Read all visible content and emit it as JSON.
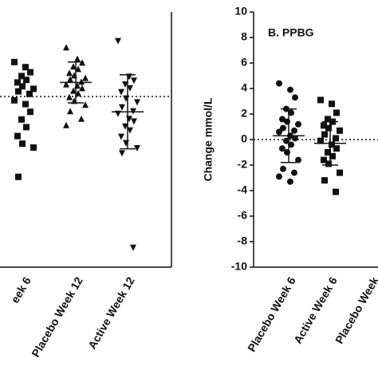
{
  "chart_data": [
    {
      "type": "scatter",
      "color": "#111111",
      "ylim": [
        -13.375,
        6.625
      ],
      "reference_line": 0,
      "groups": [
        {
          "category": "eek 6",
          "marker": "square",
          "values": [
            2.7,
            2.3,
            1.9,
            1.6,
            1.3,
            1.1,
            0.8,
            0.6,
            0.4,
            0.2,
            -0.3,
            -0.6,
            -1.2,
            -1.8,
            -2.4,
            -3.1,
            -3.7,
            -4.0,
            -6.3
          ]
        },
        {
          "category": "Placebo Week 12",
          "marker": "triangle-up",
          "values": [
            3.8,
            2.9,
            2.6,
            2.3,
            2.1,
            1.8,
            1.6,
            1.4,
            1.3,
            1.1,
            0.9,
            0.8,
            0.6,
            0.4,
            0.2,
            -0.1,
            -0.4,
            -0.7,
            -1.2,
            -1.8,
            -2.3
          ],
          "mean": 1.1,
          "sd": 1.6
        },
        {
          "category": "Active Week 12",
          "marker": "triangle-down",
          "values": [
            4.4,
            1.6,
            1.3,
            1.0,
            0.7,
            0.4,
            -0.1,
            -0.4,
            -0.8,
            -1.1,
            -1.3,
            -1.7,
            -1.9,
            -2.3,
            -2.6,
            -3.1,
            -3.6,
            -4.0,
            -4.4,
            -11.8
          ],
          "mean": -1.2,
          "sd": 2.9
        }
      ]
    },
    {
      "type": "scatter",
      "color": "#111111",
      "title": "B. PPBG",
      "ylabel": "Change mmol/L",
      "ylim": [
        -10,
        10
      ],
      "yticks": [
        -10,
        -8,
        -6,
        -4,
        -2,
        0,
        2,
        4,
        6,
        8,
        10
      ],
      "reference_line": 0,
      "groups": [
        {
          "category": "Placebo Week 6",
          "marker": "circle",
          "values": [
            4.4,
            3.9,
            3.3,
            2.4,
            2.1,
            1.6,
            1.4,
            1.2,
            0.9,
            0.7,
            0.6,
            0.3,
            0.1,
            -0.1,
            -0.4,
            -0.7,
            -1.0,
            -1.6,
            -2.3,
            -2.6,
            -2.9,
            -3.3
          ],
          "mean": 0.3,
          "sd": 2.1
        },
        {
          "category": "Active Week 6",
          "marker": "square",
          "values": [
            3.1,
            2.8,
            2.1,
            1.6,
            1.4,
            1.1,
            0.9,
            0.7,
            0.4,
            0.1,
            -0.1,
            -0.4,
            -0.7,
            -1.0,
            -1.3,
            -1.6,
            -1.9,
            -2.6,
            -3.2,
            -4.1
          ],
          "mean": -0.3,
          "sd": 1.7
        },
        {
          "category": "Placebo Week",
          "marker": "square",
          "values": []
        }
      ]
    }
  ]
}
